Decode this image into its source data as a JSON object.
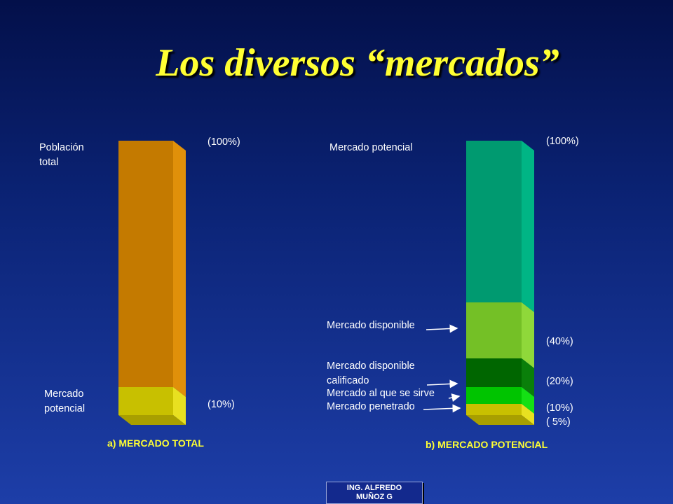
{
  "title": "Los diversos “mercados”",
  "left_chart": {
    "caption": "a) MERCADO TOTAL",
    "top_label_line1": "Población",
    "top_label_line2": "total",
    "bottom_label_line1": "Mercado",
    "bottom_label_line2": "potencial",
    "pct_top": "(100%)",
    "pct_bottom": "(10%)",
    "colors": {
      "main": "#c47a00",
      "main_side": "#e0900a",
      "base": "#c8c000",
      "base_side": "#e8e020",
      "floor": "#a89f00"
    }
  },
  "right_chart": {
    "caption": "b) MERCADO POTENCIAL",
    "label_top": "Mercado potencial",
    "label_disponible": "Mercado disponible",
    "label_calificado_line1": "Mercado disponible",
    "label_calificado_line2": "calificado",
    "label_sirve": "Mercado al que se sirve",
    "label_penetrado": "Mercado penetrado",
    "pct_100": "(100%)",
    "pct_40": "(40%)",
    "pct_20": "(20%)",
    "pct_10": "(10%)",
    "pct_5": "( 5%)",
    "colors": {
      "potencial": "#009a70",
      "potencial_side": "#00b585",
      "disponible": "#74c026",
      "disponible_side": "#8fd83a",
      "calificado": "#006600",
      "calificado_side": "#0a7f0a",
      "sirve": "#00c400",
      "sirve_side": "#14e014",
      "penetrado": "#c8c000",
      "penetrado_side": "#e8e020"
    }
  },
  "footer": {
    "line1": "ING. ALFREDO",
    "line2": "MUÑOZ G"
  }
}
